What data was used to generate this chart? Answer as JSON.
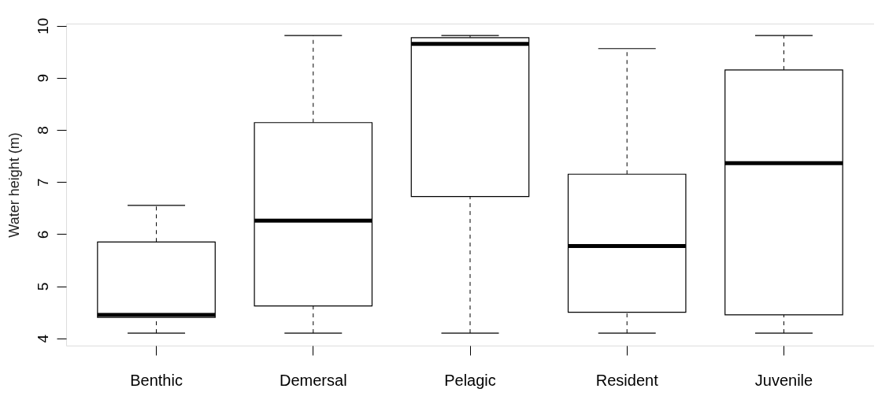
{
  "chart_data": {
    "type": "box",
    "ylabel": "Water height (m)",
    "categories": [
      "Benthic",
      "Demersal",
      "Pelagic",
      "Resident",
      "Juvenile"
    ],
    "boxes": [
      {
        "low": 4.1,
        "q1": 4.4,
        "median": 4.45,
        "q3": 5.85,
        "high": 6.55
      },
      {
        "low": 4.1,
        "q1": 4.62,
        "median": 6.26,
        "q3": 8.14,
        "high": 9.81
      },
      {
        "low": 4.1,
        "q1": 6.72,
        "median": 9.65,
        "q3": 9.77,
        "high": 9.81
      },
      {
        "low": 4.1,
        "q1": 4.5,
        "median": 5.77,
        "q3": 7.15,
        "high": 9.56
      },
      {
        "low": 4.1,
        "q1": 4.45,
        "median": 7.36,
        "q3": 9.15,
        "high": 9.81
      }
    ],
    "ylim": [
      3.86,
      10.04
    ],
    "yticks": [
      4,
      5,
      6,
      7,
      8,
      9,
      10
    ]
  }
}
